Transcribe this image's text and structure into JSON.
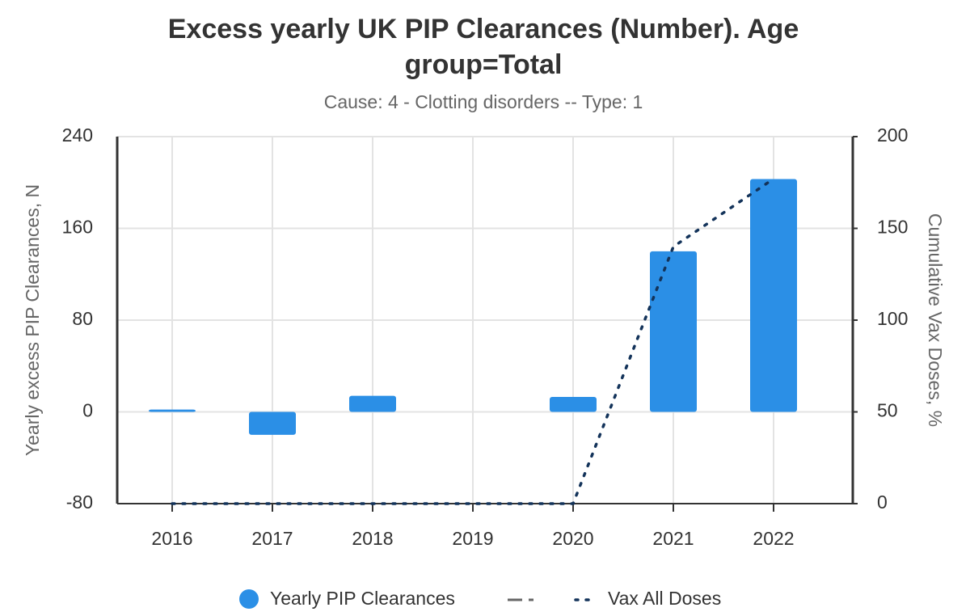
{
  "chart_data": {
    "type": "bar",
    "title": "Excess yearly UK PIP Clearances (Number). Age",
    "title_line2": "group=Total",
    "subtitle": "Cause: 4 - Clotting disorders -- Type: 1",
    "ylabel": "Yearly excess PIP Clearances, N",
    "y2label": "Cumulative Vax Doses, %",
    "categories": [
      "2016",
      "2017",
      "2018",
      "2019",
      "2020",
      "2021",
      "2022"
    ],
    "series": [
      {
        "name": "Yearly PIP Clearances",
        "type": "bar",
        "color": "#2b8fe6",
        "values": [
          2,
          -20,
          14,
          0,
          13,
          140,
          203
        ]
      },
      {
        "name": "Vax All Doses",
        "type": "line",
        "axis": "y2",
        "color": "#13335a",
        "values": [
          0,
          0,
          0,
          0,
          0,
          140,
          177
        ]
      }
    ],
    "ylim": [
      -80,
      240
    ],
    "yticks": [
      -80,
      0,
      80,
      160,
      240
    ],
    "y2lim": [
      0,
      200
    ],
    "y2ticks": [
      0,
      50,
      100,
      150,
      200
    ],
    "grid": true
  }
}
